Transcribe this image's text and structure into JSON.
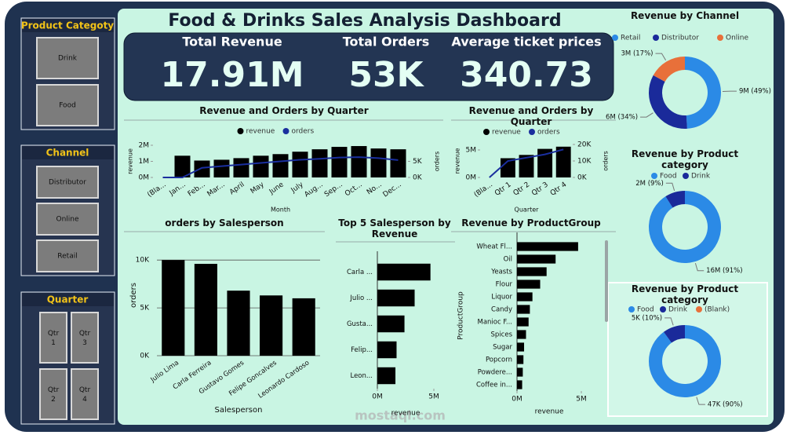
{
  "title": "Food & Drinks Sales Analysis Dashboard",
  "slicers": [
    {
      "title": "Product Categoty",
      "items": [
        "Drink",
        "Food"
      ]
    },
    {
      "title": "Channel",
      "items": [
        "Distributor",
        "Online",
        "Retail"
      ]
    },
    {
      "title": "Quarter",
      "items": [
        "Qtr 1",
        "Qtr 3",
        "Qtr 2",
        "Qtr 4"
      ]
    }
  ],
  "kpis": [
    {
      "label": "Total Revenue",
      "value": "17.91M"
    },
    {
      "label": "Total Orders",
      "value": "53K"
    },
    {
      "label": "Average ticket prices",
      "value": "340.73"
    }
  ],
  "watermark": "mostaql.com",
  "chart_data": [
    {
      "type": "bar_line",
      "title": "Revenue and Orders by Quarter",
      "xlabel": "Month",
      "ylabel": "revenue",
      "y2label": "orders",
      "categories": [
        "(Bla...",
        "Jan...",
        "Feb...",
        "Mar...",
        "April",
        "May",
        "June",
        "July",
        "Aug...",
        "Sep...",
        "Oct...",
        "No...",
        "Dec..."
      ],
      "series": [
        {
          "name": "revenue",
          "color": "#000000",
          "values": [
            0,
            1350000,
            1050000,
            1100000,
            1200000,
            1350000,
            1450000,
            1600000,
            1750000,
            1900000,
            1950000,
            1800000,
            1750000
          ]
        },
        {
          "name": "orders",
          "color": "#1a2f9e",
          "axis": "y2",
          "values": [
            0,
            0,
            3000,
            3500,
            4000,
            4500,
            5000,
            5500,
            5800,
            6200,
            6300,
            6000,
            5400
          ]
        }
      ],
      "ylim": [
        0,
        2000000
      ],
      "yticks": [
        {
          "value": 0,
          "label": "0M"
        },
        {
          "value": 1000000,
          "label": "1M"
        },
        {
          "value": 2000000,
          "label": "2M"
        }
      ],
      "y2lim": [
        0,
        10000
      ],
      "y2ticks": [
        {
          "value": 0,
          "label": "0K"
        },
        {
          "value": 5000,
          "label": "5K"
        }
      ]
    },
    {
      "type": "bar_line",
      "title": "Revenue and Orders by Quarter",
      "xlabel": "Quarter",
      "ylabel": "revenue",
      "y2label": "orders",
      "categories": [
        "(Bla...",
        "Qtr 1",
        "Qtr 2",
        "Qtr 3",
        "Qtr 4"
      ],
      "series": [
        {
          "name": "revenue",
          "color": "#000000",
          "values": [
            0,
            3500000,
            4100000,
            5200000,
            5600000
          ]
        },
        {
          "name": "orders",
          "color": "#1a2f9e",
          "axis": "y2",
          "values": [
            0,
            10000,
            12000,
            14000,
            17000
          ]
        }
      ],
      "ylim": [
        0,
        6000000
      ],
      "yticks": [
        {
          "value": 0,
          "label": "0M"
        },
        {
          "value": 5000000,
          "label": "5M"
        }
      ],
      "y2lim": [
        0,
        20000
      ],
      "y2ticks": [
        {
          "value": 0,
          "label": "0K"
        },
        {
          "value": 10000,
          "label": "10K"
        },
        {
          "value": 20000,
          "label": "20K"
        }
      ]
    },
    {
      "type": "bar",
      "title": "orders by Salesperson",
      "xlabel": "Salesperson",
      "ylabel": "orders",
      "grid": true,
      "color": "#000000",
      "categories": [
        "Julio Lima",
        "Carla Ferreira",
        "Gustavo Gomes",
        "Felipe Goncalves",
        "Leonardo Cardoso"
      ],
      "values": [
        10000,
        9600,
        6800,
        6300,
        6000
      ],
      "ylim": [
        0,
        11000
      ],
      "yticks": [
        {
          "value": 0,
          "label": "0K"
        },
        {
          "value": 5000,
          "label": "5K"
        },
        {
          "value": 10000,
          "label": "10K"
        }
      ]
    },
    {
      "type": "bar",
      "horizontal": true,
      "title": "Top 5 Salesperson by Revenue",
      "xlabel": "revenue",
      "color": "#000000",
      "categories": [
        "Carla ...",
        "Julio ...",
        "Gusta...",
        "Felip...",
        "Leon..."
      ],
      "values": [
        4700000,
        3300000,
        2400000,
        1700000,
        1600000
      ],
      "xlim": [
        0,
        5000000
      ],
      "xticks": [
        {
          "value": 0,
          "label": "0M"
        },
        {
          "value": 5000000,
          "label": "5M"
        }
      ]
    },
    {
      "type": "bar",
      "horizontal": true,
      "title": "Revenue by ProductGroup",
      "xlabel": "revenue",
      "ylabel": "ProductGroup",
      "color": "#000000",
      "categories": [
        "Wheat Fl...",
        "Oil",
        "Yeasts",
        "Flour",
        "Liquor",
        "Candy",
        "Manioc F...",
        "Spices",
        "Sugar",
        "Popcorn",
        "Powdere...",
        "Coffee in..."
      ],
      "values": [
        4750000,
        3000000,
        2300000,
        1800000,
        1200000,
        1000000,
        900000,
        700000,
        550000,
        500000,
        450000,
        400000
      ],
      "xlim": [
        0,
        5000000
      ],
      "xticks": [
        {
          "value": 0,
          "label": "0M"
        },
        {
          "value": 5000000,
          "label": "5M"
        }
      ]
    },
    {
      "type": "donut",
      "title": "Revenue by Channel",
      "categories": [
        "Retail",
        "Distributor",
        "Online"
      ],
      "colors": [
        "#2b8ae6",
        "#1a2a9a",
        "#e8703a"
      ],
      "values": [
        49,
        34,
        17
      ],
      "value_labels": [
        "9M (49%)",
        "6M (34%)",
        "3M (17%)"
      ]
    },
    {
      "type": "donut",
      "title": "Revenue by Product category",
      "categories": [
        "Food",
        "Drink"
      ],
      "colors": [
        "#2b8ae6",
        "#1a2a9a"
      ],
      "values": [
        91,
        9
      ],
      "value_labels": [
        "16M (91%)",
        "2M (9%)"
      ]
    },
    {
      "type": "donut",
      "title": "Revenue by Product category",
      "categories": [
        "Food",
        "Drink",
        "(Blank)"
      ],
      "colors": [
        "#2b8ae6",
        "#1a2a9a",
        "#e8703a"
      ],
      "values": [
        90,
        10,
        0
      ],
      "value_labels": [
        "47K (90%)",
        "5K (10%)",
        null
      ]
    }
  ]
}
